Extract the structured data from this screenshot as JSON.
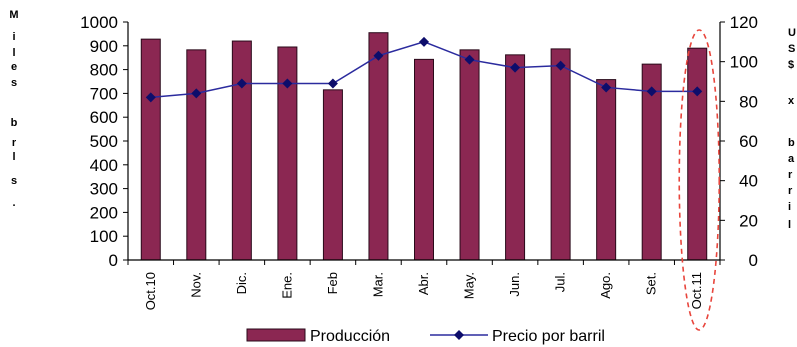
{
  "chart_data": {
    "type": "bar",
    "categories": [
      "Oct.10",
      "Nov.",
      "Dic.",
      "Ene.",
      "Feb",
      "Mar.",
      "Abr.",
      "May.",
      "Jun.",
      "Jul.",
      "Ago.",
      "Set.",
      "Oct.11"
    ],
    "series": [
      {
        "name": "Producción",
        "type": "bar",
        "axis": "left",
        "color": "#8b2752",
        "values": [
          928,
          883,
          920,
          895,
          715,
          955,
          843,
          883,
          862,
          887,
          758,
          823,
          890
        ]
      },
      {
        "name": "Precio por barril",
        "type": "line",
        "axis": "right",
        "color": "#2b2b9e",
        "values": [
          82,
          84,
          89,
          89,
          89,
          103,
          110,
          101,
          97,
          98,
          87,
          85,
          85
        ]
      }
    ],
    "ylim_left": [
      0,
      1000
    ],
    "yticks_left": [
      0,
      100,
      200,
      300,
      400,
      500,
      600,
      700,
      800,
      900,
      1000
    ],
    "ylim_right": [
      0,
      120
    ],
    "yticks_right": [
      0,
      20,
      40,
      60,
      80,
      100,
      120
    ],
    "ylabel_left": "M i l e s b r l s .",
    "ylabel_right_fragments": [
      "U",
      "S",
      "$",
      "x",
      "b",
      "a",
      "r",
      "r",
      "i",
      "l"
    ],
    "legend": [
      "Producción",
      "Precio por barril"
    ],
    "legend_position": "bottom",
    "grid": false,
    "highlight": {
      "category": "Oct.11",
      "style": "dashed-ellipse",
      "color": "#e8453c"
    }
  }
}
